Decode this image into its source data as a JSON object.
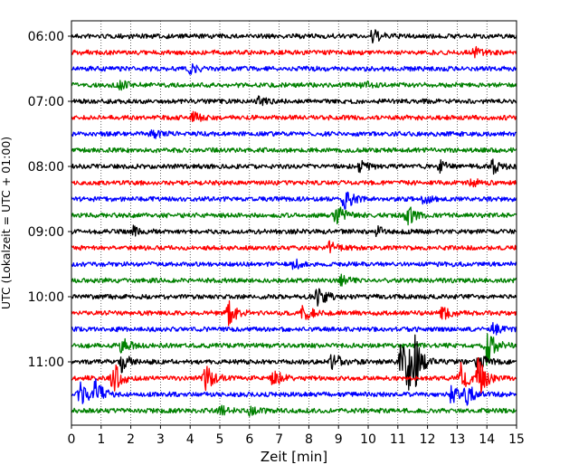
{
  "chart_data": {
    "type": "line",
    "xlabel": "Zeit  [min]",
    "ylabel": "UTC (Lokalzeit = UTC + 01:00)",
    "xlim": [
      0,
      15
    ],
    "x_ticks": [
      0,
      1,
      2,
      3,
      4,
      5,
      6,
      7,
      8,
      9,
      10,
      11,
      12,
      13,
      14,
      15
    ],
    "y_tick_labels": [
      "06:00",
      "07:00",
      "08:00",
      "09:00",
      "10:00",
      "11:00"
    ],
    "rows_per_hour": 4,
    "row_minutes": 15,
    "vertical_grid": "dotted",
    "trace_colors": [
      "#000000",
      "#ff0000",
      "#0000ff",
      "#008000"
    ],
    "traces": [
      {
        "start": "06:00",
        "events": [
          [
            10.15,
            0.6
          ]
        ]
      },
      {
        "start": "06:15",
        "events": [
          [
            13.6,
            0.5
          ]
        ]
      },
      {
        "start": "06:30",
        "events": [
          [
            4.0,
            0.35
          ]
        ]
      },
      {
        "start": "06:45",
        "events": [
          [
            1.6,
            0.4
          ],
          [
            9.8,
            0.35
          ]
        ]
      },
      {
        "start": "07:00",
        "events": [
          [
            6.3,
            0.35
          ]
        ]
      },
      {
        "start": "07:15",
        "events": [
          [
            4.1,
            0.45
          ]
        ]
      },
      {
        "start": "07:30",
        "events": [
          [
            2.7,
            0.4
          ]
        ]
      },
      {
        "start": "07:45",
        "events": []
      },
      {
        "start": "08:00",
        "events": [
          [
            9.7,
            0.45
          ],
          [
            12.4,
            0.5
          ],
          [
            14.2,
            0.6
          ]
        ]
      },
      {
        "start": "08:15",
        "events": [
          [
            13.5,
            0.45
          ]
        ]
      },
      {
        "start": "08:30",
        "events": [
          [
            9.2,
            1.0
          ],
          [
            11.8,
            0.6
          ]
        ]
      },
      {
        "start": "08:45",
        "events": [
          [
            8.9,
            1.1
          ],
          [
            11.3,
            1.0
          ]
        ]
      },
      {
        "start": "09:00",
        "events": [
          [
            2.1,
            0.35
          ],
          [
            10.3,
            0.35
          ]
        ]
      },
      {
        "start": "09:15",
        "events": [
          [
            8.7,
            0.45
          ]
        ]
      },
      {
        "start": "09:30",
        "events": [
          [
            7.5,
            0.45
          ]
        ]
      },
      {
        "start": "09:45",
        "events": [
          [
            9.1,
            0.35
          ]
        ]
      },
      {
        "start": "10:00",
        "events": [
          [
            8.3,
            1.0
          ]
        ]
      },
      {
        "start": "10:15",
        "events": [
          [
            5.3,
            1.1
          ],
          [
            7.8,
            1.0
          ],
          [
            12.5,
            0.6
          ]
        ]
      },
      {
        "start": "10:30",
        "events": [
          [
            14.2,
            0.5
          ]
        ]
      },
      {
        "start": "10:45",
        "events": [
          [
            1.7,
            0.7
          ],
          [
            14.0,
            1.8
          ]
        ]
      },
      {
        "start": "11:00",
        "events": [
          [
            1.7,
            0.8
          ],
          [
            8.8,
            1.0
          ],
          [
            11.1,
            1.9
          ],
          [
            11.35,
            2.1
          ],
          [
            11.6,
            1.3
          ],
          [
            13.7,
            0.9
          ]
        ]
      },
      {
        "start": "11:15",
        "events": [
          [
            1.4,
            1.6
          ],
          [
            4.5,
            1.2
          ],
          [
            6.8,
            0.8
          ],
          [
            13.1,
            1.4
          ],
          [
            13.7,
            1.8
          ]
        ]
      },
      {
        "start": "11:30",
        "events": [
          [
            0.3,
            1.1
          ],
          [
            0.8,
            1.3
          ],
          [
            12.8,
            0.8
          ],
          [
            13.3,
            1.0
          ]
        ]
      },
      {
        "start": "11:45",
        "events": [
          [
            5.0,
            0.45
          ],
          [
            6.0,
            0.35
          ]
        ]
      }
    ]
  }
}
